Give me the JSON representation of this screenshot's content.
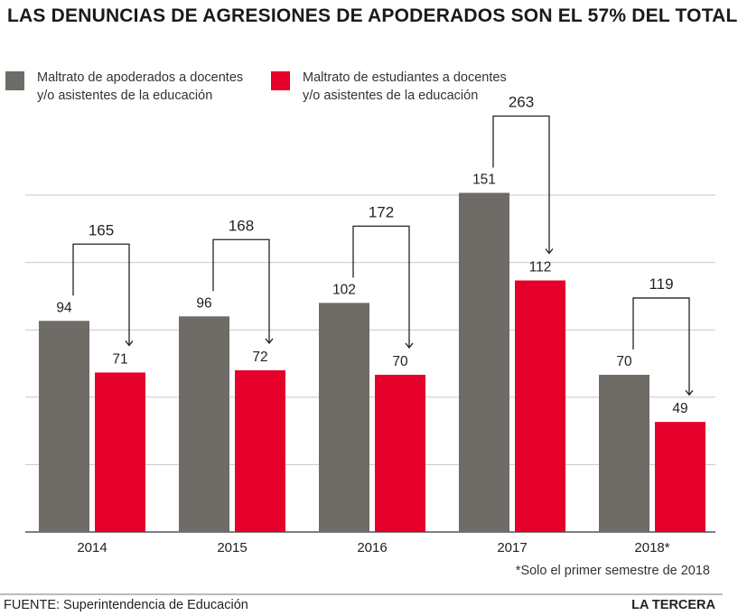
{
  "title": "LAS DENUNCIAS DE AGRESIONES DE APODERADOS SON EL 57% DEL TOTAL",
  "legend": [
    {
      "label": "Maltrato de apoderados a docentes\ny/o asistentes de la educación",
      "color": "#6f6b66"
    },
    {
      "label": "Maltrato de estudiantes a docentes\ny/o asistentes de la educación",
      "color": "#e5002b"
    }
  ],
  "footnote": "*Solo el primer semestre de 2018",
  "source": "FUENTE: Superintendencia de Educación",
  "brand": "LA TERCERA",
  "chart_data": {
    "type": "bar",
    "categories": [
      "2014",
      "2015",
      "2016",
      "2017",
      "2018*"
    ],
    "series": [
      {
        "name": "Maltrato de apoderados a docentes y/o asistentes de la educación",
        "values": [
          94,
          96,
          102,
          151,
          70
        ],
        "color": "#6f6b66"
      },
      {
        "name": "Maltrato de estudiantes a docentes y/o asistentes de la educación",
        "values": [
          71,
          72,
          70,
          112,
          49
        ],
        "color": "#e5002b"
      }
    ],
    "totals": [
      165,
      168,
      172,
      263,
      119
    ],
    "ylim": [
      0,
      150
    ],
    "grid": true
  }
}
